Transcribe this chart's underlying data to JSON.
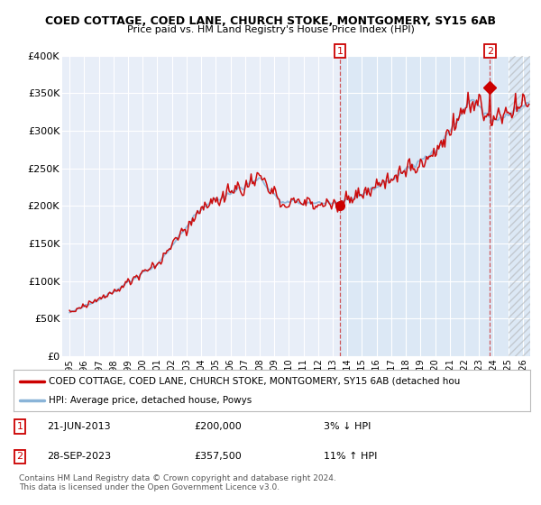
{
  "title": "COED COTTAGE, COED LANE, CHURCH STOKE, MONTGOMERY, SY15 6AB",
  "subtitle": "Price paid vs. HM Land Registry's House Price Index (HPI)",
  "ylabel_ticks": [
    "£0",
    "£50K",
    "£100K",
    "£150K",
    "£200K",
    "£250K",
    "£300K",
    "£350K",
    "£400K"
  ],
  "ylim": [
    0,
    400000
  ],
  "ytick_vals": [
    0,
    50000,
    100000,
    150000,
    200000,
    250000,
    300000,
    350000,
    400000
  ],
  "background_color": "#ffffff",
  "plot_bg_color": "#dce8f5",
  "plot_bg_color_left": "#e8eef8",
  "grid_color": "#ffffff",
  "hpi_color": "#8ab4d8",
  "price_color": "#cc0000",
  "marker1_x": 2013.5,
  "marker1_y": 200000,
  "marker2_x": 2023.75,
  "marker2_y": 357500,
  "legend_label1": "COED COTTAGE, COED LANE, CHURCH STOKE, MONTGOMERY, SY15 6AB (detached hou",
  "legend_label2": "HPI: Average price, detached house, Powys",
  "footnote1": "Contains HM Land Registry data © Crown copyright and database right 2024.",
  "footnote2": "This data is licensed under the Open Government Licence v3.0.",
  "table_row1": [
    "1",
    "21-JUN-2013",
    "£200,000",
    "3% ↓ HPI"
  ],
  "table_row2": [
    "2",
    "28-SEP-2023",
    "£357,500",
    "11% ↑ HPI"
  ],
  "xlim_left": 1994.5,
  "xlim_right": 2026.5,
  "xtick_start": 1995,
  "xtick_end": 2026
}
